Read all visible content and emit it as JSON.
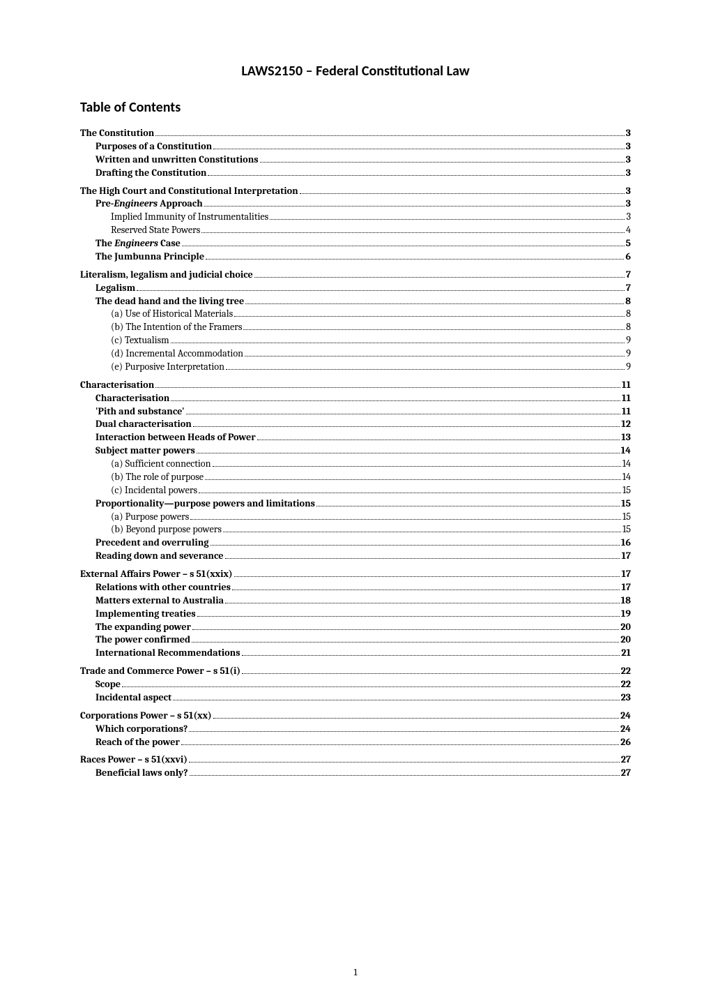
{
  "title": "LAWS2150 – Federal Constitutional Law",
  "toc_heading": "Table of Contents",
  "page_number": "1",
  "entries": [
    {
      "level": 1,
      "label": "The Constitution",
      "page": "3"
    },
    {
      "level": 2,
      "label": "Purposes of a Constitution",
      "page": "3"
    },
    {
      "level": 2,
      "label": "Written and unwritten Constitutions",
      "page": "3"
    },
    {
      "level": 2,
      "label": "Drafting the Constitution",
      "page": "3"
    },
    {
      "level": 1,
      "label": "The High Court and Constitutional Interpretation",
      "page": "3"
    },
    {
      "level": 2,
      "label_html": "Pre-<span class=\"italic\">Engineers</span> Approach",
      "page": "3"
    },
    {
      "level": 3,
      "label": "Implied Immunity of Instrumentalities",
      "page": "3"
    },
    {
      "level": 3,
      "label": "Reserved State Powers",
      "page": "4"
    },
    {
      "level": 2,
      "label_html": "The <span class=\"italic\">Engineers</span> Case",
      "page": "5"
    },
    {
      "level": 2,
      "label": "The Jumbunna Principle",
      "page": "6"
    },
    {
      "level": 1,
      "label": "Literalism, legalism and judicial choice",
      "page": "7"
    },
    {
      "level": 2,
      "label": "Legalism",
      "page": "7"
    },
    {
      "level": 2,
      "label": "The dead hand and the living tree",
      "page": "8"
    },
    {
      "level": 3,
      "label": "(a) Use of Historical Materials",
      "page": "8"
    },
    {
      "level": 3,
      "label": "(b) The Intention of the Framers",
      "page": "8"
    },
    {
      "level": 3,
      "label": "(c) Textualism",
      "page": "9"
    },
    {
      "level": 3,
      "label": "(d) Incremental Accommodation",
      "page": "9"
    },
    {
      "level": 3,
      "label": "(e) Purposive Interpretation",
      "page": "9"
    },
    {
      "level": 1,
      "label": "Characterisation",
      "page": "11"
    },
    {
      "level": 2,
      "label": "Characterisation",
      "page": "11"
    },
    {
      "level": 2,
      "label": "'Pith and substance'",
      "page": "11"
    },
    {
      "level": 2,
      "label": "Dual characterisation",
      "page": "12"
    },
    {
      "level": 2,
      "label": "Interaction between Heads of Power",
      "page": "13"
    },
    {
      "level": 2,
      "label": "Subject matter powers",
      "page": "14"
    },
    {
      "level": 3,
      "label": "(a) Sufficient connection",
      "page": "14"
    },
    {
      "level": 3,
      "label": "(b) The role of purpose",
      "page": "14"
    },
    {
      "level": 3,
      "label": "(c) Incidental powers",
      "page": "15"
    },
    {
      "level": 2,
      "label": "Proportionality—purpose powers and limitations",
      "page": "15"
    },
    {
      "level": 3,
      "label": "(a) Purpose powers",
      "page": "15"
    },
    {
      "level": 3,
      "label": "(b) Beyond purpose powers",
      "page": "15"
    },
    {
      "level": 2,
      "label": "Precedent and overruling",
      "page": "16"
    },
    {
      "level": 2,
      "label": "Reading down and severance",
      "page": "17"
    },
    {
      "level": 1,
      "label": "External Affairs Power – s 51(xxix)",
      "page": "17"
    },
    {
      "level": 2,
      "label": "Relations with other countries",
      "page": "17"
    },
    {
      "level": 2,
      "label": "Matters external to Australia",
      "page": "18"
    },
    {
      "level": 2,
      "label": "Implementing treaties",
      "page": "19"
    },
    {
      "level": 2,
      "label": "The expanding power",
      "page": "20"
    },
    {
      "level": 2,
      "label": "The power confirmed",
      "page": "20"
    },
    {
      "level": 2,
      "label": "International Recommendations",
      "page": "21"
    },
    {
      "level": 1,
      "label": "Trade and Commerce Power – s 51(i)",
      "page": "22"
    },
    {
      "level": 2,
      "label": "Scope",
      "page": "22"
    },
    {
      "level": 2,
      "label": "Incidental aspect",
      "page": "23"
    },
    {
      "level": 1,
      "label": "Corporations Power – s 51(xx)",
      "page": "24"
    },
    {
      "level": 2,
      "label": "Which corporations?",
      "page": "24"
    },
    {
      "level": 2,
      "label": "Reach of the power",
      "page": "26"
    },
    {
      "level": 1,
      "label": "Races Power – s 51(xxvi)",
      "page": "27"
    },
    {
      "level": 2,
      "label": "Beneficial laws only?",
      "page": "27"
    }
  ]
}
